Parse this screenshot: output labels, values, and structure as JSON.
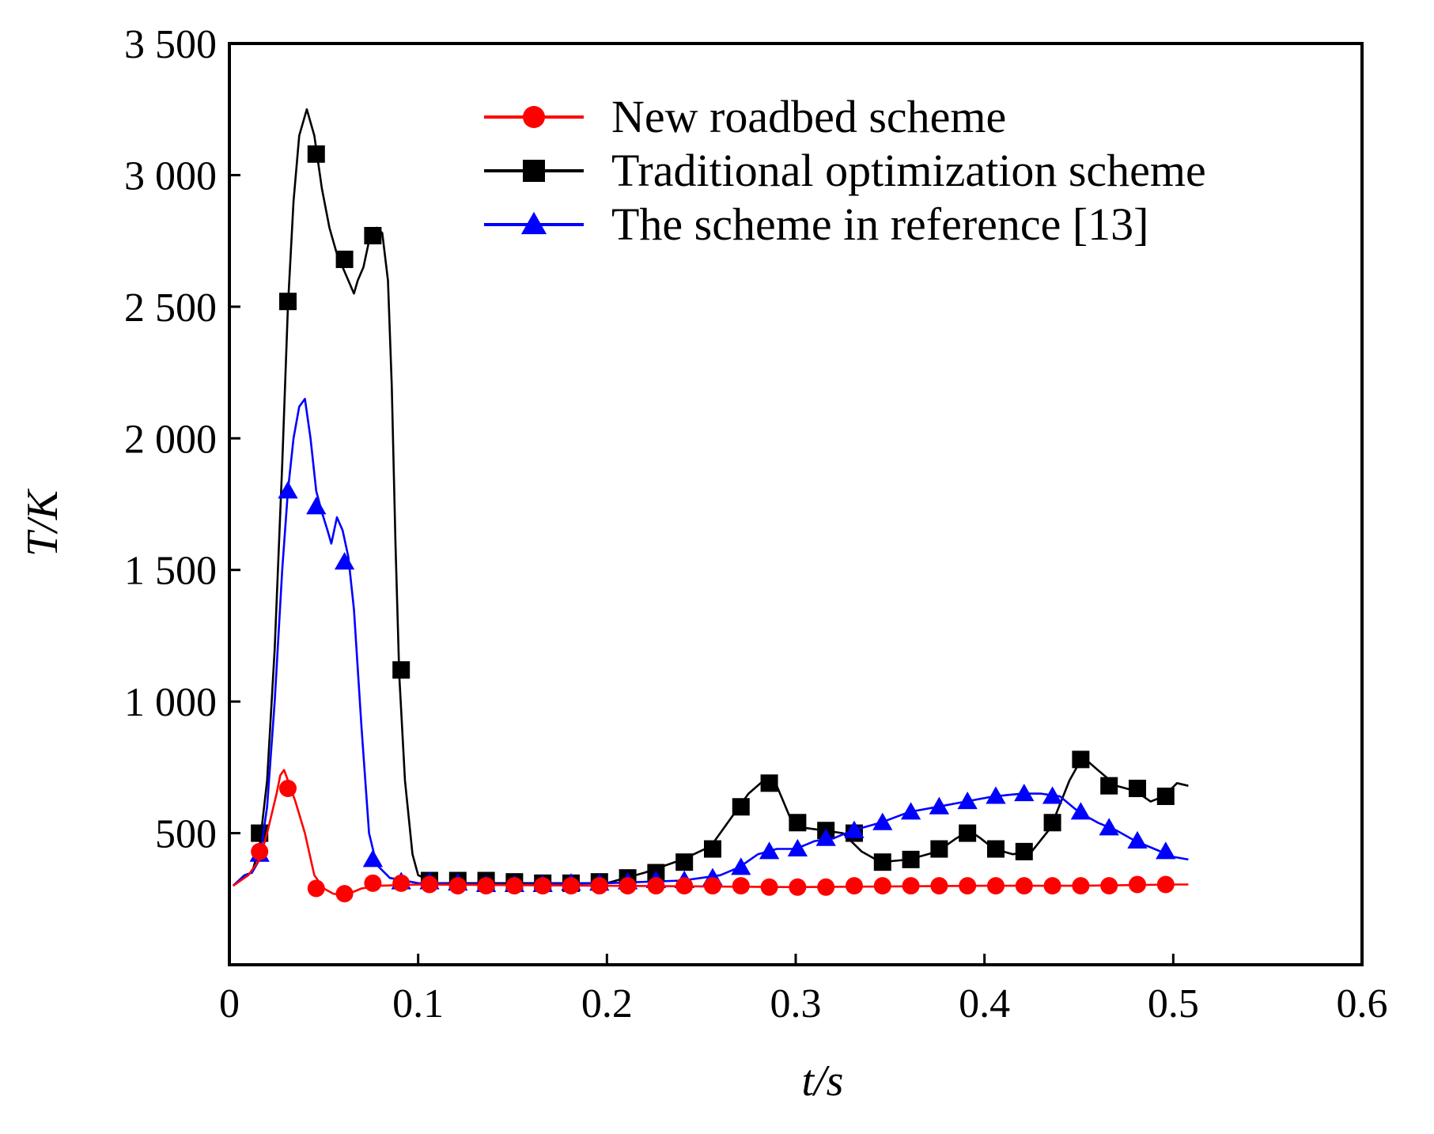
{
  "chart_data": {
    "type": "line",
    "xlabel": "t/s",
    "ylabel": "T/K",
    "xlim": [
      0,
      0.6
    ],
    "ylim": [
      0,
      3500
    ],
    "x_ticks": [
      0,
      0.1,
      0.2,
      0.3,
      0.4,
      0.5,
      0.6
    ],
    "x_tick_labels": [
      "0",
      "0.1",
      "0.2",
      "0.3",
      "0.4",
      "0.5",
      "0.6"
    ],
    "y_ticks": [
      500,
      1000,
      1500,
      2000,
      2500,
      3000,
      3500
    ],
    "y_tick_labels": [
      "500",
      "1 000",
      "1 500",
      "2 000",
      "2 500",
      "3 000",
      "3 500"
    ],
    "grid": false,
    "legend_position": "top-right",
    "series": [
      {
        "name": "New roadbed scheme",
        "color": "#ff0000",
        "marker": "circle",
        "line": [
          [
            0.002,
            300
          ],
          [
            0.01,
            340
          ],
          [
            0.016,
            400
          ],
          [
            0.02,
            500
          ],
          [
            0.025,
            650
          ],
          [
            0.027,
            720
          ],
          [
            0.029,
            740
          ],
          [
            0.031,
            700
          ],
          [
            0.035,
            620
          ],
          [
            0.04,
            500
          ],
          [
            0.045,
            340
          ],
          [
            0.05,
            290
          ],
          [
            0.055,
            270
          ],
          [
            0.06,
            265
          ],
          [
            0.065,
            275
          ],
          [
            0.07,
            290
          ],
          [
            0.08,
            300
          ],
          [
            0.1,
            305
          ],
          [
            0.2,
            300
          ],
          [
            0.3,
            295
          ],
          [
            0.4,
            300
          ],
          [
            0.45,
            300
          ],
          [
            0.5,
            305
          ],
          [
            0.508,
            305
          ]
        ],
        "markers": [
          [
            0.016,
            430
          ],
          [
            0.031,
            670
          ],
          [
            0.046,
            290
          ],
          [
            0.061,
            270
          ],
          [
            0.076,
            310
          ],
          [
            0.091,
            310
          ],
          [
            0.106,
            305
          ],
          [
            0.121,
            300
          ],
          [
            0.136,
            300
          ],
          [
            0.151,
            300
          ],
          [
            0.166,
            300
          ],
          [
            0.181,
            300
          ],
          [
            0.196,
            300
          ],
          [
            0.211,
            300
          ],
          [
            0.226,
            300
          ],
          [
            0.241,
            300
          ],
          [
            0.256,
            300
          ],
          [
            0.271,
            300
          ],
          [
            0.286,
            295
          ],
          [
            0.301,
            295
          ],
          [
            0.316,
            295
          ],
          [
            0.331,
            300
          ],
          [
            0.346,
            300
          ],
          [
            0.361,
            300
          ],
          [
            0.376,
            300
          ],
          [
            0.391,
            300
          ],
          [
            0.406,
            300
          ],
          [
            0.421,
            300
          ],
          [
            0.436,
            300
          ],
          [
            0.451,
            300
          ],
          [
            0.466,
            300
          ],
          [
            0.481,
            305
          ],
          [
            0.496,
            305
          ]
        ]
      },
      {
        "name": "Traditional optimization scheme",
        "color": "#000000",
        "marker": "square",
        "line": [
          [
            0.002,
            300
          ],
          [
            0.008,
            340
          ],
          [
            0.012,
            350
          ],
          [
            0.016,
            450
          ],
          [
            0.02,
            700
          ],
          [
            0.024,
            1200
          ],
          [
            0.028,
            1900
          ],
          [
            0.031,
            2500
          ],
          [
            0.034,
            2900
          ],
          [
            0.037,
            3150
          ],
          [
            0.041,
            3250
          ],
          [
            0.045,
            3150
          ],
          [
            0.049,
            2950
          ],
          [
            0.053,
            2800
          ],
          [
            0.057,
            2700
          ],
          [
            0.06,
            2650
          ],
          [
            0.063,
            2600
          ],
          [
            0.066,
            2550
          ],
          [
            0.068,
            2600
          ],
          [
            0.071,
            2650
          ],
          [
            0.074,
            2750
          ],
          [
            0.078,
            2800
          ],
          [
            0.081,
            2780
          ],
          [
            0.084,
            2600
          ],
          [
            0.086,
            2200
          ],
          [
            0.088,
            1600
          ],
          [
            0.09,
            1100
          ],
          [
            0.093,
            700
          ],
          [
            0.097,
            420
          ],
          [
            0.1,
            340
          ],
          [
            0.11,
            310
          ],
          [
            0.15,
            310
          ],
          [
            0.2,
            310
          ],
          [
            0.22,
            350
          ],
          [
            0.24,
            400
          ],
          [
            0.255,
            450
          ],
          [
            0.265,
            550
          ],
          [
            0.275,
            650
          ],
          [
            0.283,
            700
          ],
          [
            0.29,
            680
          ],
          [
            0.297,
            560
          ],
          [
            0.305,
            520
          ],
          [
            0.315,
            510
          ],
          [
            0.325,
            500
          ],
          [
            0.335,
            430
          ],
          [
            0.345,
            390
          ],
          [
            0.36,
            400
          ],
          [
            0.375,
            430
          ],
          [
            0.385,
            480
          ],
          [
            0.392,
            510
          ],
          [
            0.398,
            480
          ],
          [
            0.405,
            440
          ],
          [
            0.415,
            420
          ],
          [
            0.425,
            430
          ],
          [
            0.435,
            520
          ],
          [
            0.445,
            700
          ],
          [
            0.452,
            790
          ],
          [
            0.46,
            740
          ],
          [
            0.47,
            680
          ],
          [
            0.48,
            660
          ],
          [
            0.488,
            620
          ],
          [
            0.495,
            640
          ],
          [
            0.502,
            690
          ],
          [
            0.508,
            680
          ]
        ],
        "markers": [
          [
            0.016,
            500
          ],
          [
            0.031,
            2520
          ],
          [
            0.046,
            3080
          ],
          [
            0.061,
            2680
          ],
          [
            0.076,
            2770
          ],
          [
            0.091,
            1120
          ],
          [
            0.106,
            320
          ],
          [
            0.121,
            320
          ],
          [
            0.136,
            320
          ],
          [
            0.151,
            315
          ],
          [
            0.166,
            310
          ],
          [
            0.181,
            310
          ],
          [
            0.196,
            315
          ],
          [
            0.211,
            330
          ],
          [
            0.226,
            350
          ],
          [
            0.241,
            390
          ],
          [
            0.256,
            440
          ],
          [
            0.271,
            600
          ],
          [
            0.286,
            690
          ],
          [
            0.301,
            540
          ],
          [
            0.316,
            510
          ],
          [
            0.331,
            500
          ],
          [
            0.346,
            390
          ],
          [
            0.361,
            400
          ],
          [
            0.376,
            440
          ],
          [
            0.391,
            500
          ],
          [
            0.406,
            440
          ],
          [
            0.421,
            430
          ],
          [
            0.436,
            540
          ],
          [
            0.451,
            780
          ],
          [
            0.466,
            680
          ],
          [
            0.481,
            670
          ],
          [
            0.496,
            640
          ]
        ]
      },
      {
        "name": "The scheme in reference [13]",
        "color": "#0000ff",
        "marker": "triangle",
        "line": [
          [
            0.002,
            300
          ],
          [
            0.008,
            340
          ],
          [
            0.012,
            350
          ],
          [
            0.016,
            400
          ],
          [
            0.02,
            600
          ],
          [
            0.024,
            1000
          ],
          [
            0.028,
            1500
          ],
          [
            0.031,
            1800
          ],
          [
            0.034,
            2000
          ],
          [
            0.037,
            2120
          ],
          [
            0.04,
            2150
          ],
          [
            0.043,
            2000
          ],
          [
            0.046,
            1800
          ],
          [
            0.049,
            1720
          ],
          [
            0.052,
            1650
          ],
          [
            0.054,
            1600
          ],
          [
            0.057,
            1700
          ],
          [
            0.06,
            1650
          ],
          [
            0.063,
            1550
          ],
          [
            0.066,
            1350
          ],
          [
            0.07,
            900
          ],
          [
            0.074,
            500
          ],
          [
            0.078,
            380
          ],
          [
            0.085,
            330
          ],
          [
            0.1,
            310
          ],
          [
            0.15,
            305
          ],
          [
            0.2,
            310
          ],
          [
            0.24,
            320
          ],
          [
            0.26,
            340
          ],
          [
            0.27,
            370
          ],
          [
            0.28,
            420
          ],
          [
            0.29,
            440
          ],
          [
            0.3,
            440
          ],
          [
            0.31,
            470
          ],
          [
            0.32,
            480
          ],
          [
            0.33,
            510
          ],
          [
            0.345,
            540
          ],
          [
            0.36,
            580
          ],
          [
            0.375,
            600
          ],
          [
            0.39,
            620
          ],
          [
            0.405,
            640
          ],
          [
            0.42,
            650
          ],
          [
            0.43,
            650
          ],
          [
            0.44,
            640
          ],
          [
            0.45,
            580
          ],
          [
            0.46,
            540
          ],
          [
            0.47,
            510
          ],
          [
            0.48,
            470
          ],
          [
            0.49,
            440
          ],
          [
            0.5,
            410
          ],
          [
            0.508,
            400
          ]
        ],
        "markers": [
          [
            0.016,
            420
          ],
          [
            0.031,
            1800
          ],
          [
            0.046,
            1740
          ],
          [
            0.061,
            1530
          ],
          [
            0.076,
            400
          ],
          [
            0.091,
            315
          ],
          [
            0.106,
            315
          ],
          [
            0.121,
            310
          ],
          [
            0.136,
            305
          ],
          [
            0.151,
            305
          ],
          [
            0.166,
            305
          ],
          [
            0.181,
            310
          ],
          [
            0.196,
            310
          ],
          [
            0.211,
            315
          ],
          [
            0.226,
            320
          ],
          [
            0.241,
            320
          ],
          [
            0.256,
            330
          ],
          [
            0.271,
            370
          ],
          [
            0.286,
            430
          ],
          [
            0.301,
            440
          ],
          [
            0.316,
            480
          ],
          [
            0.331,
            510
          ],
          [
            0.346,
            540
          ],
          [
            0.361,
            580
          ],
          [
            0.376,
            600
          ],
          [
            0.391,
            620
          ],
          [
            0.406,
            640
          ],
          [
            0.421,
            650
          ],
          [
            0.436,
            640
          ],
          [
            0.451,
            580
          ],
          [
            0.466,
            520
          ],
          [
            0.481,
            470
          ],
          [
            0.496,
            430
          ]
        ]
      }
    ]
  }
}
